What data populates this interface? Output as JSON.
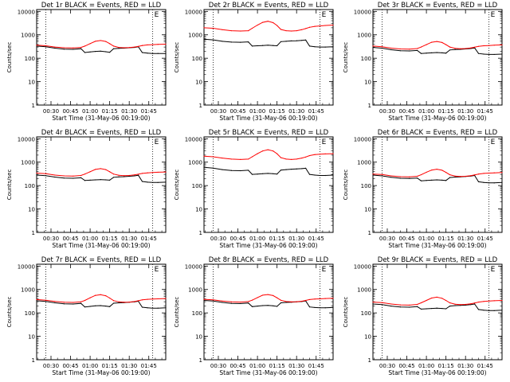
{
  "chart_data": {
    "type": "line",
    "xlabel": "Start Time (31-May-06 00:19:00)",
    "ylabel": "Counts/sec",
    "x_unit": "minutes after 00:00 UT",
    "xlim": [
      19,
      118
    ],
    "yscale": "log",
    "ylim": [
      1,
      12000
    ],
    "x_ticks": [
      {
        "value": 30,
        "label": "00:30"
      },
      {
        "value": 45,
        "label": "00:45"
      },
      {
        "value": 60,
        "label": "01:00"
      },
      {
        "value": 75,
        "label": "01:15"
      },
      {
        "value": 90,
        "label": "01:30"
      },
      {
        "value": 105,
        "label": "01:45"
      }
    ],
    "y_ticks": [
      {
        "value": 1,
        "label": "1"
      },
      {
        "value": 10,
        "label": "10"
      },
      {
        "value": 100,
        "label": "100"
      },
      {
        "value": 1000,
        "label": "1000"
      },
      {
        "value": 10000,
        "label": "10000"
      }
    ],
    "vlines": [
      26,
      108
    ],
    "corner_mark": "E",
    "x": [
      19,
      26,
      33,
      40,
      47,
      53,
      56,
      60,
      64,
      68,
      72,
      75,
      78,
      82,
      86,
      90,
      94,
      97,
      100,
      104,
      108,
      112,
      118
    ],
    "panels": [
      {
        "title": "Det 1r BLACK = Events, RED = LLD",
        "series": [
          {
            "name": "Events",
            "color": "#000000",
            "values": [
              330,
              310,
              270,
              245,
              240,
              255,
              175,
              185,
              195,
              200,
              190,
              180,
              255,
              265,
              270,
              280,
              290,
              310,
              175,
              165,
              160,
              160,
              160
            ]
          },
          {
            "name": "LLD",
            "color": "#ff0000",
            "values": [
              360,
              340,
              300,
              280,
              275,
              290,
              330,
              420,
              530,
              570,
              520,
              420,
              330,
              290,
              280,
              285,
              300,
              320,
              350,
              370,
              380,
              390,
              400
            ]
          }
        ]
      },
      {
        "title": "Det 2r BLACK = Events, RED = LLD",
        "series": [
          {
            "name": "Events",
            "color": "#000000",
            "values": [
              650,
              610,
              530,
              490,
              480,
              500,
              330,
              340,
              350,
              360,
              350,
              340,
              510,
              530,
              550,
              560,
              580,
              600,
              330,
              310,
              300,
              300,
              310
            ]
          },
          {
            "name": "LLD",
            "color": "#ff0000",
            "values": [
              2000,
              1900,
              1650,
              1500,
              1450,
              1500,
              1900,
              2600,
              3400,
              3800,
              3300,
              2500,
              1700,
              1500,
              1450,
              1500,
              1650,
              1850,
              2100,
              2300,
              2400,
              2500,
              2600
            ]
          }
        ]
      },
      {
        "title": "Det 3r BLACK = Events, RED = LLD",
        "series": [
          {
            "name": "Events",
            "color": "#000000",
            "values": [
              290,
              270,
              230,
              210,
              205,
              215,
              160,
              165,
              170,
              175,
              170,
              165,
              225,
              235,
              240,
              250,
              260,
              275,
              160,
              150,
              145,
              145,
              150
            ]
          },
          {
            "name": "LLD",
            "color": "#ff0000",
            "values": [
              330,
              310,
              270,
              250,
              245,
              260,
              300,
              380,
              480,
              520,
              470,
              380,
              300,
              265,
              255,
              260,
              275,
              295,
              320,
              340,
              350,
              360,
              370
            ]
          }
        ]
      },
      {
        "title": "Det 4r BLACK = Events, RED = LLD",
        "series": [
          {
            "name": "Events",
            "color": "#000000",
            "values": [
              280,
              265,
              230,
              210,
              205,
              215,
              165,
              170,
              175,
              180,
              175,
              170,
              225,
              235,
              240,
              250,
              260,
              275,
              150,
              140,
              135,
              135,
              140
            ]
          },
          {
            "name": "LLD",
            "color": "#ff0000",
            "values": [
              340,
              320,
              280,
              260,
              255,
              270,
              310,
              390,
              490,
              530,
              480,
              390,
              310,
              275,
              265,
              270,
              285,
              305,
              330,
              350,
              360,
              370,
              380
            ]
          }
        ]
      },
      {
        "title": "Det 5r BLACK = Events, RED = LLD",
        "series": [
          {
            "name": "Events",
            "color": "#000000",
            "values": [
              600,
              560,
              480,
              440,
              430,
              450,
              300,
              310,
              320,
              330,
              320,
              310,
              460,
              480,
              500,
              510,
              530,
              550,
              300,
              280,
              270,
              270,
              280
            ]
          },
          {
            "name": "LLD",
            "color": "#ff0000",
            "values": [
              1800,
              1700,
              1500,
              1350,
              1300,
              1350,
              1700,
              2300,
              3000,
              3400,
              3000,
              2300,
              1550,
              1350,
              1300,
              1350,
              1500,
              1650,
              1900,
              2100,
              2200,
              2250,
              2300
            ]
          }
        ]
      },
      {
        "title": "Det 6r BLACK = Events, RED = LLD",
        "series": [
          {
            "name": "Events",
            "color": "#000000",
            "values": [
              280,
              260,
              225,
              205,
              200,
              210,
              160,
              165,
              170,
              175,
              170,
              165,
              220,
              230,
              235,
              245,
              255,
              270,
              145,
              135,
              130,
              130,
              135
            ]
          },
          {
            "name": "LLD",
            "color": "#ff0000",
            "values": [
              310,
              295,
              260,
              240,
              235,
              250,
              290,
              370,
              460,
              500,
              450,
              365,
              290,
              255,
              245,
              250,
              265,
              285,
              310,
              330,
              340,
              350,
              360
            ]
          }
        ]
      },
      {
        "title": "Det 7r BLACK = Events, RED = LLD",
        "series": [
          {
            "name": "Events",
            "color": "#000000",
            "values": [
              330,
              310,
              270,
              245,
              240,
              255,
              180,
              190,
              200,
              205,
              195,
              185,
              260,
              270,
              275,
              285,
              295,
              315,
              175,
              165,
              160,
              160,
              165
            ]
          },
          {
            "name": "LLD",
            "color": "#ff0000",
            "values": [
              370,
              350,
              310,
              285,
              280,
              295,
              340,
              440,
              560,
              600,
              540,
              430,
              335,
              295,
              285,
              290,
              305,
              330,
              360,
              380,
              390,
              400,
              410
            ]
          }
        ]
      },
      {
        "title": "Det 8r BLACK = Events, RED = LLD",
        "series": [
          {
            "name": "Events",
            "color": "#000000",
            "values": [
              340,
              320,
              280,
              255,
              250,
              265,
              185,
              195,
              205,
              210,
              200,
              190,
              270,
              280,
              285,
              295,
              305,
              325,
              180,
              170,
              165,
              165,
              170
            ]
          },
          {
            "name": "LLD",
            "color": "#ff0000",
            "values": [
              380,
              360,
              320,
              295,
              290,
              305,
              350,
              450,
              570,
              610,
              550,
              440,
              345,
              305,
              295,
              300,
              315,
              340,
              370,
              390,
              400,
              410,
              420
            ]
          }
        ]
      },
      {
        "title": "Det 9r BLACK = Events, RED = LLD",
        "series": [
          {
            "name": "Events",
            "color": "#000000",
            "values": [
              240,
              225,
              195,
              180,
              175,
              185,
              145,
              150,
              155,
              160,
              155,
              150,
              195,
              205,
              210,
              215,
              225,
              240,
              140,
              130,
              125,
              125,
              130
            ]
          },
          {
            "name": "LLD",
            "color": "#ff0000",
            "values": [
              290,
              275,
              240,
              220,
              215,
              230,
              270,
              340,
              430,
              470,
              420,
              340,
              270,
              235,
              225,
              230,
              245,
              265,
              290,
              310,
              320,
              330,
              340
            ]
          }
        ]
      }
    ]
  }
}
